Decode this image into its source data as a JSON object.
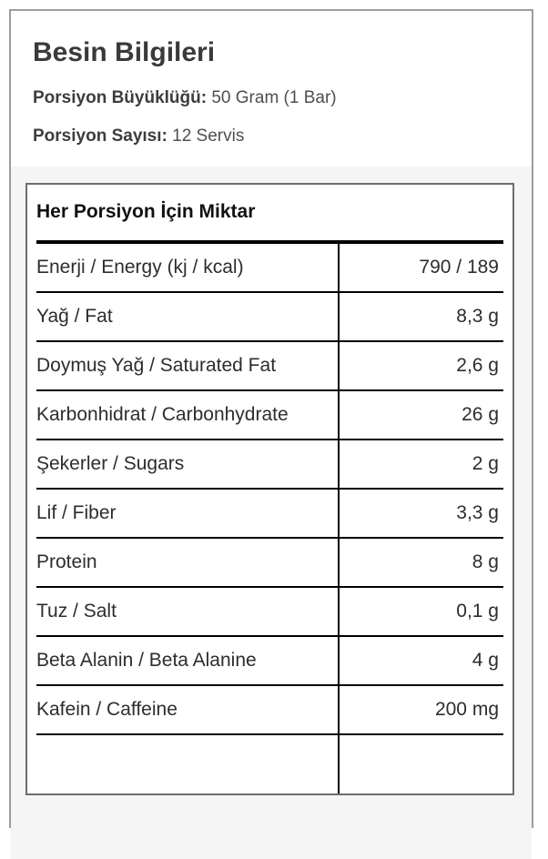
{
  "header": {
    "title": "Besin Bilgileri",
    "serving_size": {
      "label": "Porsiyon Büyüklüğü:",
      "value": "50 Gram (1 Bar)"
    },
    "servings": {
      "label": "Porsiyon Sayısı:",
      "value": "12 Servis"
    }
  },
  "nutrition_table": {
    "caption": "Her Porsiyon İçin Miktar",
    "rows": [
      {
        "label": "Enerji / Energy (kj / kcal)",
        "value": "790 / 189"
      },
      {
        "label": "Yağ / Fat",
        "value": "8,3 g"
      },
      {
        "label": "Doymuş Yağ / Saturated Fat",
        "value": "2,6 g"
      },
      {
        "label": "Karbonhidrat / Carbonhydrate",
        "value": "26 g"
      },
      {
        "label": "Şekerler / Sugars",
        "value": "2 g"
      },
      {
        "label": "Lif / Fiber",
        "value": "3,3 g"
      },
      {
        "label": "Protein",
        "value": "8 g"
      },
      {
        "label": "Tuz / Salt",
        "value": "0,1 g"
      },
      {
        "label": "Beta Alanin / Beta Alanine",
        "value": "4 g"
      },
      {
        "label": "Kafein / Caffeine",
        "value": "200 mg"
      }
    ]
  },
  "colors": {
    "card_border": "#9d9d9d",
    "table_border": "#6d6d6d",
    "band_background": "#f5f5f5",
    "rule": "#000000",
    "title_text": "#3a3a3a",
    "body_text": "#2d2d2d"
  }
}
